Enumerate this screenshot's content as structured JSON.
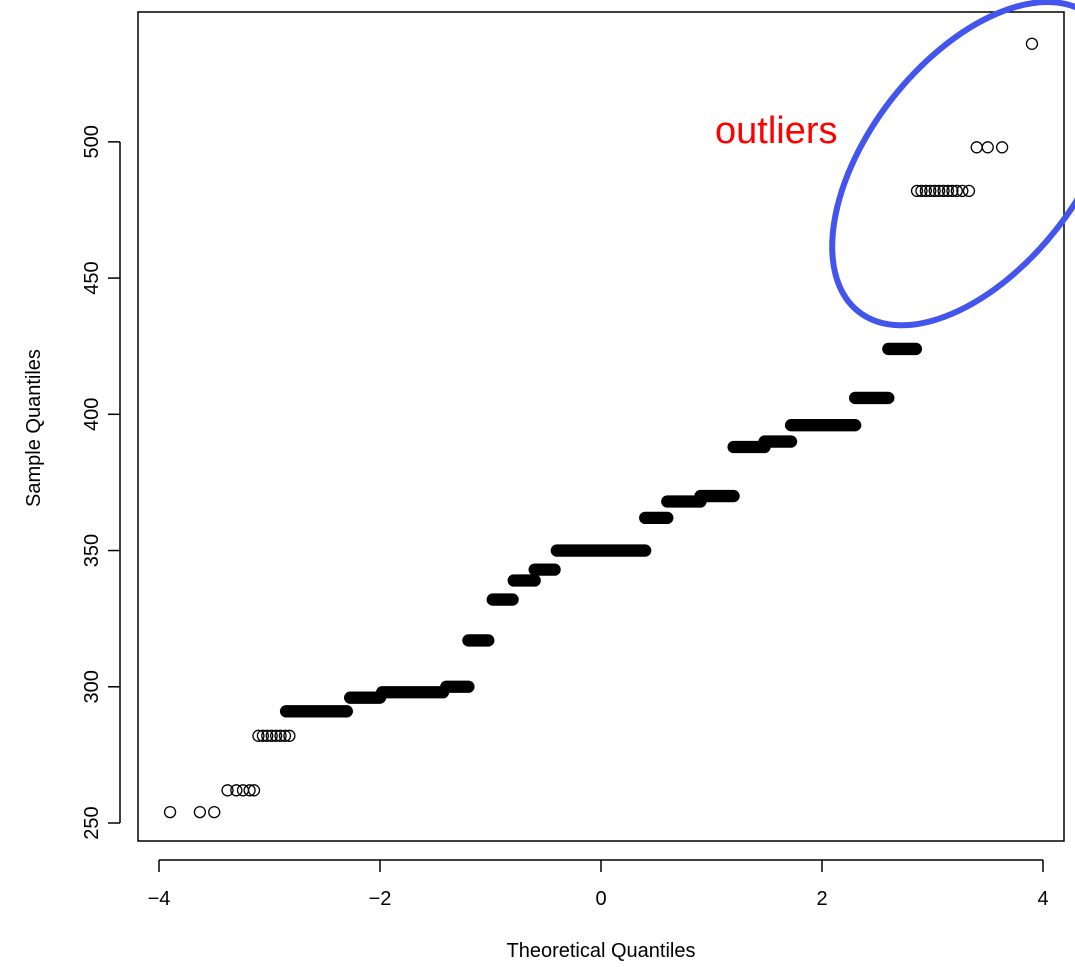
{
  "chart_data": {
    "type": "scatter",
    "title": "",
    "xlabel": "Theoretical Quantiles",
    "ylabel": "Sample Quantiles",
    "xlim": [
      -4.2,
      4.2
    ],
    "ylim": [
      243,
      541
    ],
    "x_ticks": [
      -4,
      -2,
      0,
      2,
      4
    ],
    "x_tick_labels": [
      "−4",
      "−2",
      "0",
      "2",
      "4"
    ],
    "y_ticks": [
      250,
      300,
      350,
      400,
      450,
      500
    ],
    "y_tick_labels": [
      "250",
      "300",
      "350",
      "400",
      "450",
      "500"
    ],
    "grid": false,
    "legend": "none",
    "marker": "open-circle",
    "point_color": "#000000",
    "points": [
      {
        "x": -3.9,
        "y": 254
      },
      {
        "x": -3.63,
        "y": 254
      },
      {
        "x": -3.5,
        "y": 254
      },
      {
        "x": -3.38,
        "y": 262
      },
      {
        "x": -3.3,
        "y": 262
      },
      {
        "x": -3.24,
        "y": 262
      },
      {
        "x": -3.18,
        "y": 262
      },
      {
        "x": -3.14,
        "y": 262
      },
      {
        "x": -3.1,
        "y": 282
      },
      {
        "x": -3.06,
        "y": 282
      },
      {
        "x": -3.02,
        "y": 282
      },
      {
        "x": -2.98,
        "y": 282
      },
      {
        "x": -2.94,
        "y": 282
      },
      {
        "x": -2.9,
        "y": 282
      },
      {
        "x": -2.86,
        "y": 282
      },
      {
        "x": -2.82,
        "y": 282
      },
      {
        "x": 2.86,
        "y": 482
      },
      {
        "x": 2.9,
        "y": 482
      },
      {
        "x": 2.94,
        "y": 482
      },
      {
        "x": 2.98,
        "y": 482
      },
      {
        "x": 3.02,
        "y": 482
      },
      {
        "x": 3.06,
        "y": 482
      },
      {
        "x": 3.1,
        "y": 482
      },
      {
        "x": 3.14,
        "y": 482
      },
      {
        "x": 3.18,
        "y": 482
      },
      {
        "x": 3.22,
        "y": 482
      },
      {
        "x": 3.27,
        "y": 482
      },
      {
        "x": 3.33,
        "y": 482
      },
      {
        "x": 3.4,
        "y": 498
      },
      {
        "x": 3.5,
        "y": 498
      },
      {
        "x": 3.63,
        "y": 498
      },
      {
        "x": 3.9,
        "y": 536
      }
    ],
    "dense_runs": [
      {
        "x_start": -2.85,
        "x_end": -2.3,
        "y": 291
      },
      {
        "x_start": -2.27,
        "x_end": -2.0,
        "y": 296
      },
      {
        "x_start": -1.98,
        "x_end": -1.43,
        "y": 298
      },
      {
        "x_start": -1.4,
        "x_end": -1.2,
        "y": 300
      },
      {
        "x_start": -1.2,
        "x_end": -1.02,
        "y": 317
      },
      {
        "x_start": -0.98,
        "x_end": -0.8,
        "y": 332
      },
      {
        "x_start": -0.79,
        "x_end": -0.6,
        "y": 339
      },
      {
        "x_start": -0.6,
        "x_end": -0.42,
        "y": 343
      },
      {
        "x_start": -0.4,
        "x_end": 0.4,
        "y": 350
      },
      {
        "x_start": 0.4,
        "x_end": 0.6,
        "y": 362
      },
      {
        "x_start": 0.6,
        "x_end": 0.9,
        "y": 368
      },
      {
        "x_start": 0.9,
        "x_end": 1.2,
        "y": 370
      },
      {
        "x_start": 1.2,
        "x_end": 1.48,
        "y": 388
      },
      {
        "x_start": 1.48,
        "x_end": 1.72,
        "y": 390
      },
      {
        "x_start": 1.72,
        "x_end": 2.3,
        "y": 396
      },
      {
        "x_start": 2.3,
        "x_end": 2.6,
        "y": 406
      },
      {
        "x_start": 2.6,
        "x_end": 2.85,
        "y": 424
      }
    ],
    "annotations": [
      {
        "text": "outliers",
        "x": 0.5,
        "y": 504,
        "color": "#ff0000"
      }
    ],
    "highlight_ellipse": {
      "cx": 3.38,
      "cy": 492,
      "rx": 0.95,
      "ry": 69,
      "rotation_deg": 38,
      "color": "#4455ee"
    }
  }
}
